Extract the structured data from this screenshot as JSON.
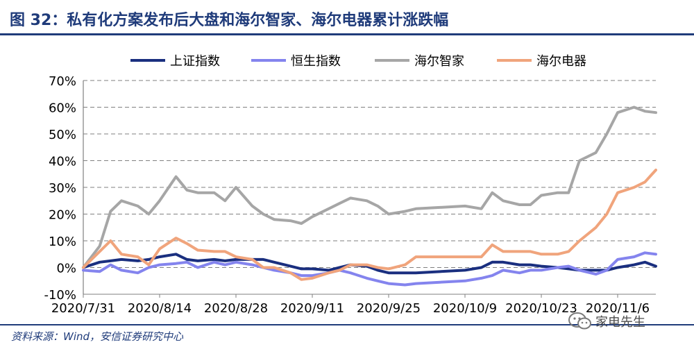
{
  "header": {
    "title": "图 32：私有化方案发布后大盘和海尔智家、海尔电器累计涨跌幅"
  },
  "footer": {
    "source": "资料来源：Wind，安信证券研究中心"
  },
  "watermark": {
    "text": "家电先生",
    "icon": "wechat-icon"
  },
  "chart_data": {
    "type": "line",
    "legend_position": "top",
    "grid": "horizontal-dashed",
    "ylim": [
      -0.1,
      0.7
    ],
    "yticks": [
      "70%",
      "60%",
      "50%",
      "40%",
      "30%",
      "20%",
      "10%",
      "0%",
      "-10%"
    ],
    "ytick_values": [
      0.7,
      0.6,
      0.5,
      0.4,
      0.3,
      0.2,
      0.1,
      0.0,
      -0.1
    ],
    "x_tick_labels": [
      "2020/7/31",
      "2020/8/14",
      "2020/8/28",
      "2020/9/11",
      "2020/9/25",
      "2020/10/9",
      "2020/10/23",
      "2020/11/6"
    ],
    "x": [
      "2020-07-31",
      "2020-08-03",
      "2020-08-05",
      "2020-08-07",
      "2020-08-10",
      "2020-08-12",
      "2020-08-14",
      "2020-08-17",
      "2020-08-19",
      "2020-08-21",
      "2020-08-24",
      "2020-08-26",
      "2020-08-28",
      "2020-08-31",
      "2020-09-02",
      "2020-09-04",
      "2020-09-07",
      "2020-09-09",
      "2020-09-11",
      "2020-09-14",
      "2020-09-16",
      "2020-09-18",
      "2020-09-21",
      "2020-09-23",
      "2020-09-25",
      "2020-09-28",
      "2020-09-30",
      "2020-10-09",
      "2020-10-12",
      "2020-10-14",
      "2020-10-16",
      "2020-10-19",
      "2020-10-21",
      "2020-10-23",
      "2020-10-26",
      "2020-10-28",
      "2020-10-30",
      "2020-11-02",
      "2020-11-04",
      "2020-11-06",
      "2020-11-09",
      "2020-11-11",
      "2020-11-13"
    ],
    "series": [
      {
        "name": "上证指数",
        "color": "#1a2f7f",
        "width": 4,
        "values": [
          0.0,
          0.02,
          0.025,
          0.03,
          0.025,
          0.03,
          0.04,
          0.05,
          0.03,
          0.025,
          0.03,
          0.025,
          0.03,
          0.03,
          0.03,
          0.02,
          0.005,
          -0.005,
          -0.005,
          -0.01,
          0.0,
          0.01,
          0.005,
          -0.01,
          -0.02,
          -0.02,
          -0.02,
          -0.01,
          0.0,
          0.02,
          0.02,
          0.01,
          0.01,
          0.005,
          0.0,
          -0.005,
          -0.01,
          -0.01,
          -0.01,
          0.0,
          0.01,
          0.02,
          0.005
        ]
      },
      {
        "name": "恒生指数",
        "color": "#8484ee",
        "width": 4,
        "values": [
          -0.01,
          -0.015,
          0.01,
          -0.01,
          -0.02,
          0.0,
          0.01,
          0.015,
          0.02,
          0.0,
          0.02,
          0.01,
          0.02,
          0.01,
          0.0,
          -0.01,
          -0.02,
          -0.03,
          -0.03,
          -0.02,
          -0.01,
          -0.02,
          -0.04,
          -0.05,
          -0.06,
          -0.065,
          -0.06,
          -0.05,
          -0.04,
          -0.03,
          -0.01,
          -0.02,
          -0.01,
          -0.01,
          0.0,
          0.005,
          -0.01,
          -0.025,
          -0.01,
          0.03,
          0.04,
          0.055,
          0.05
        ]
      },
      {
        "name": "海尔智家",
        "color": "#a6a6a6",
        "width": 4,
        "values": [
          0.0,
          0.08,
          0.21,
          0.25,
          0.23,
          0.2,
          0.25,
          0.34,
          0.29,
          0.28,
          0.28,
          0.25,
          0.3,
          0.23,
          0.2,
          0.18,
          0.175,
          0.165,
          0.19,
          0.22,
          0.24,
          0.26,
          0.25,
          0.23,
          0.2,
          0.21,
          0.22,
          0.23,
          0.22,
          0.28,
          0.25,
          0.235,
          0.235,
          0.27,
          0.28,
          0.28,
          0.4,
          0.43,
          0.5,
          0.58,
          0.6,
          0.585,
          0.58
        ]
      },
      {
        "name": "海尔电器",
        "color": "#f0a47c",
        "width": 4,
        "values": [
          0.0,
          0.06,
          0.1,
          0.05,
          0.04,
          0.01,
          0.07,
          0.11,
          0.09,
          0.065,
          0.06,
          0.06,
          0.04,
          0.03,
          0.0,
          0.0,
          -0.02,
          -0.045,
          -0.04,
          -0.02,
          -0.01,
          0.01,
          0.01,
          0.0,
          -0.005,
          0.01,
          0.04,
          0.04,
          0.04,
          0.085,
          0.06,
          0.06,
          0.06,
          0.05,
          0.05,
          0.06,
          0.1,
          0.15,
          0.2,
          0.28,
          0.3,
          0.32,
          0.365
        ]
      }
    ]
  }
}
